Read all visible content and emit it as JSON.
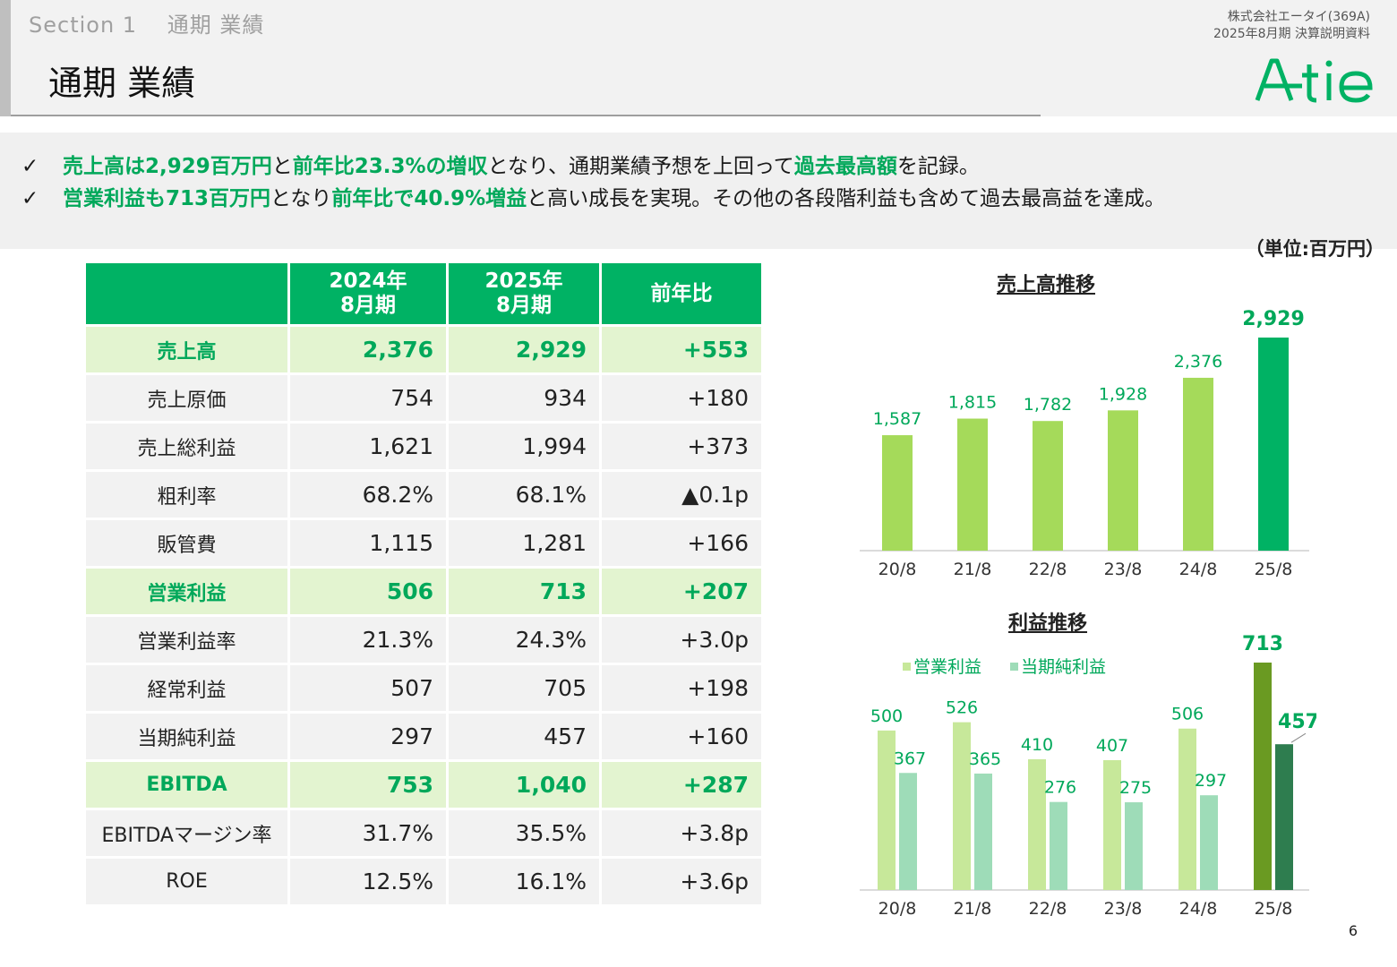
{
  "header": {
    "section": "Section 1　 通期 業績",
    "title": "通期 業績",
    "company": "株式会社エータイ(369A)",
    "report": "2025年8月期 決算説明資料",
    "logo_text": "A-tie"
  },
  "summary": {
    "bullets": [
      {
        "segments": [
          {
            "text": "売上高は2,929百万円",
            "hl": true
          },
          {
            "text": "と",
            "hl": false
          },
          {
            "text": "前年比23.3%の増収",
            "hl": true
          },
          {
            "text": "となり、通期業績予想を上回って",
            "hl": false
          },
          {
            "text": "過去最高額",
            "hl": true
          },
          {
            "text": "を記録。",
            "hl": false
          }
        ]
      },
      {
        "segments": [
          {
            "text": "営業利益も713百万円",
            "hl": true
          },
          {
            "text": "となり",
            "hl": false
          },
          {
            "text": "前年比で40.9%増益",
            "hl": true
          },
          {
            "text": "と高い成長を実現。その他の各段階利益も含めて過去最高益を達成。",
            "hl": false
          }
        ]
      }
    ],
    "check": "✓"
  },
  "unit": "（単位:百万円）",
  "table": {
    "headers": [
      "",
      "2024年\n8月期",
      "2025年\n8月期",
      "前年比"
    ],
    "rows": [
      {
        "label": "売上高",
        "fy24": "2,376",
        "fy25": "2,929",
        "yoy": "+553",
        "key": true
      },
      {
        "label": "売上原価",
        "fy24": "754",
        "fy25": "934",
        "yoy": "+180",
        "key": false
      },
      {
        "label": "売上総利益",
        "fy24": "1,621",
        "fy25": "1,994",
        "yoy": "+373",
        "key": false
      },
      {
        "label": "粗利率",
        "fy24": "68.2%",
        "fy25": "68.1%",
        "yoy": "▲0.1p",
        "key": false
      },
      {
        "label": "販管費",
        "fy24": "1,115",
        "fy25": "1,281",
        "yoy": "+166",
        "key": false
      },
      {
        "label": "営業利益",
        "fy24": "506",
        "fy25": "713",
        "yoy": "+207",
        "key": true
      },
      {
        "label": "営業利益率",
        "fy24": "21.3%",
        "fy25": "24.3%",
        "yoy": "+3.0p",
        "key": false
      },
      {
        "label": "経常利益",
        "fy24": "507",
        "fy25": "705",
        "yoy": "+198",
        "key": false
      },
      {
        "label": "当期純利益",
        "fy24": "297",
        "fy25": "457",
        "yoy": "+160",
        "key": false
      },
      {
        "label": "EBITDA",
        "fy24": "753",
        "fy25": "1,040",
        "yoy": "+287",
        "key": true
      },
      {
        "label": "EBITDAマージン率",
        "fy24": "31.7%",
        "fy25": "35.5%",
        "yoy": "+3.8p",
        "key": false
      },
      {
        "label": "ROE",
        "fy24": "12.5%",
        "fy25": "16.1%",
        "yoy": "+3.6p",
        "key": false
      }
    ]
  },
  "chart_data": [
    {
      "type": "bar",
      "title": "売上高推移",
      "categories": [
        "20/8",
        "21/8",
        "22/8",
        "23/8",
        "24/8",
        "25/8"
      ],
      "values": [
        1587,
        1815,
        1782,
        1928,
        2376,
        2929
      ],
      "labels": [
        "1,587",
        "1,815",
        "1,782",
        "1,928",
        "2,376",
        "2,929"
      ],
      "ylim": [
        0,
        2929
      ],
      "grid": false,
      "colors": {
        "bar": "#a5da5a",
        "highlight": "#00b264",
        "label": "#00a85a"
      }
    },
    {
      "type": "bar",
      "title": "利益推移",
      "categories": [
        "20/8",
        "21/8",
        "22/8",
        "23/8",
        "24/8",
        "25/8"
      ],
      "series": [
        {
          "name": "営業利益",
          "values": [
            500,
            526,
            410,
            407,
            506,
            713
          ],
          "color": "#c7e89a",
          "highlight": "#6a9a22"
        },
        {
          "name": "当期純利益",
          "values": [
            367,
            365,
            276,
            275,
            297,
            457
          ],
          "color": "#9edcb8",
          "highlight": "#2e7d4f"
        }
      ],
      "ylim": [
        0,
        713
      ],
      "grid": false,
      "legend": "top-left",
      "colors": {
        "label": "#00a85a",
        "highlight_label": "#00a85a"
      }
    }
  ],
  "page": "6"
}
